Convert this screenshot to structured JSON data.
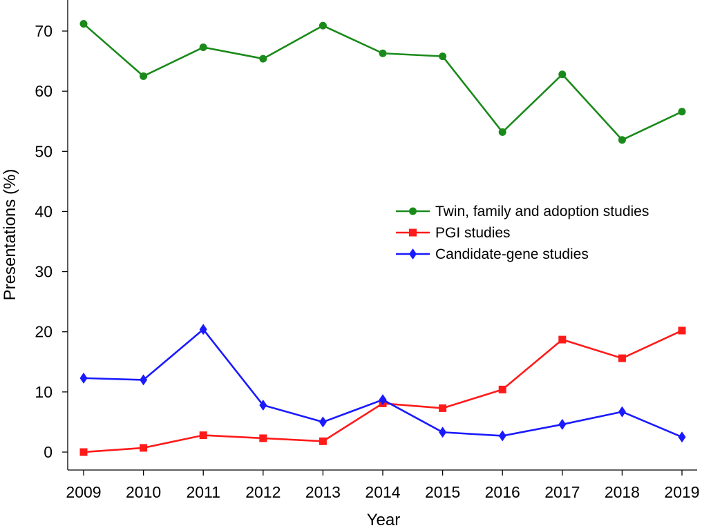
{
  "chart_data": {
    "type": "line",
    "xlabel": "Year",
    "ylabel": "Presentations (%)",
    "categories": [
      "2009",
      "2010",
      "2011",
      "2012",
      "2013",
      "2014",
      "2015",
      "2016",
      "2017",
      "2018",
      "2019"
    ],
    "y_ticks": [
      0,
      10,
      20,
      30,
      40,
      50,
      60,
      70
    ],
    "ylim": [
      -3.5,
      75
    ],
    "grid": false,
    "legend_position": "center-right",
    "series": [
      {
        "name": "Twin, family and adoption studies",
        "color": "#1a8a1a",
        "marker": "circle",
        "values": [
          71.2,
          62.5,
          67.3,
          65.4,
          70.9,
          66.3,
          65.8,
          53.2,
          62.8,
          51.9,
          56.6
        ]
      },
      {
        "name": "PGI studies",
        "color": "#ff1a1a",
        "marker": "square",
        "values": [
          0.0,
          0.7,
          2.8,
          2.3,
          1.8,
          8.1,
          7.3,
          10.4,
          18.7,
          15.6,
          20.2
        ]
      },
      {
        "name": "Candidate-gene studies",
        "color": "#1a1aff",
        "marker": "diamond",
        "values": [
          12.3,
          12.0,
          20.4,
          7.8,
          5.0,
          8.7,
          3.3,
          2.7,
          4.6,
          6.7,
          2.5
        ]
      }
    ]
  }
}
